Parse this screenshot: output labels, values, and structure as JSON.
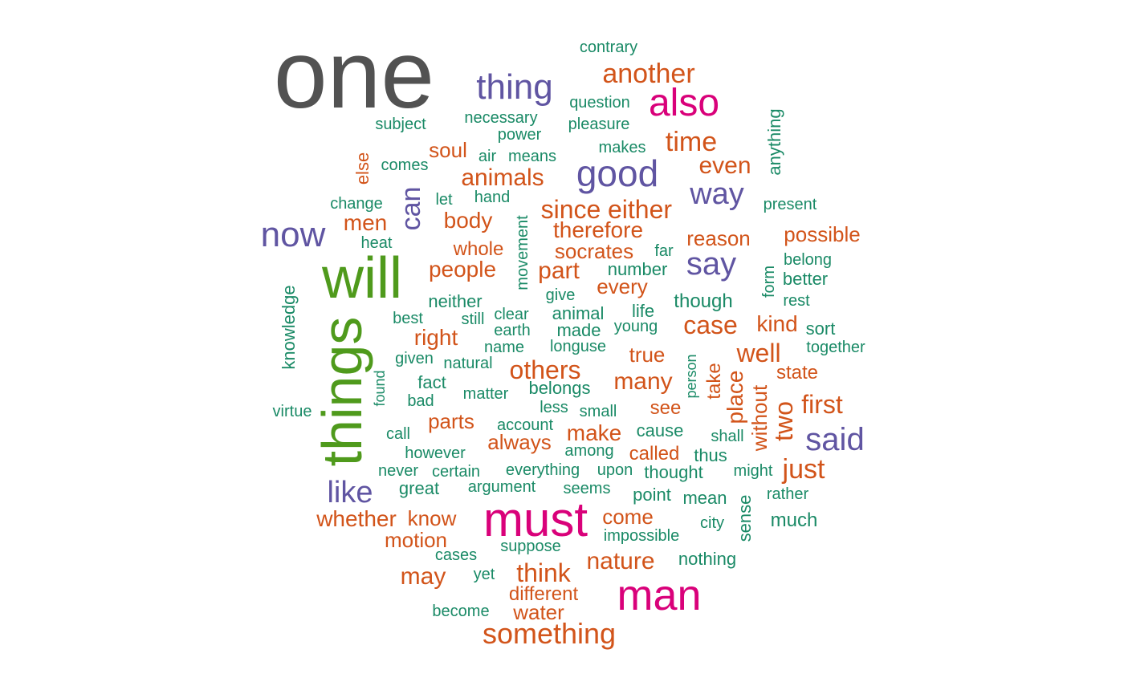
{
  "palette": {
    "gray": "#525252",
    "green": "#4f9a1c",
    "magenta": "#d9017a",
    "purple": "#6055a2",
    "orange": "#d2541a",
    "teal": "#1a8a66"
  },
  "words": [
    {
      "text": "one",
      "c": "gray"
    },
    {
      "text": "things",
      "c": "green",
      "r": -90
    },
    {
      "text": "will",
      "c": "green"
    },
    {
      "text": "must",
      "c": "magenta"
    },
    {
      "text": "man",
      "c": "magenta"
    },
    {
      "text": "also",
      "c": "magenta"
    },
    {
      "text": "good",
      "c": "purple"
    },
    {
      "text": "thing",
      "c": "purple"
    },
    {
      "text": "now",
      "c": "purple"
    },
    {
      "text": "say",
      "c": "purple"
    },
    {
      "text": "way",
      "c": "purple"
    },
    {
      "text": "said",
      "c": "purple"
    },
    {
      "text": "like",
      "c": "purple"
    },
    {
      "text": "can",
      "c": "purple",
      "r": -90
    },
    {
      "text": "another",
      "c": "orange"
    },
    {
      "text": "time",
      "c": "orange"
    },
    {
      "text": "even",
      "c": "orange"
    },
    {
      "text": "animals",
      "c": "orange"
    },
    {
      "text": "soul",
      "c": "orange"
    },
    {
      "text": "men",
      "c": "orange"
    },
    {
      "text": "body",
      "c": "orange"
    },
    {
      "text": "since",
      "c": "orange"
    },
    {
      "text": "either",
      "c": "orange"
    },
    {
      "text": "therefore",
      "c": "orange"
    },
    {
      "text": "reason",
      "c": "orange"
    },
    {
      "text": "possible",
      "c": "orange"
    },
    {
      "text": "whole",
      "c": "orange"
    },
    {
      "text": "socrates",
      "c": "orange"
    },
    {
      "text": "people",
      "c": "orange"
    },
    {
      "text": "part",
      "c": "orange"
    },
    {
      "text": "every",
      "c": "orange"
    },
    {
      "text": "case",
      "c": "orange"
    },
    {
      "text": "kind",
      "c": "orange"
    },
    {
      "text": "right",
      "c": "orange"
    },
    {
      "text": "true",
      "c": "orange"
    },
    {
      "text": "well",
      "c": "orange"
    },
    {
      "text": "others",
      "c": "orange"
    },
    {
      "text": "many",
      "c": "orange"
    },
    {
      "text": "state",
      "c": "orange"
    },
    {
      "text": "first",
      "c": "orange"
    },
    {
      "text": "see",
      "c": "orange"
    },
    {
      "text": "parts",
      "c": "orange"
    },
    {
      "text": "always",
      "c": "orange"
    },
    {
      "text": "make",
      "c": "orange"
    },
    {
      "text": "called",
      "c": "orange"
    },
    {
      "text": "just",
      "c": "orange"
    },
    {
      "text": "whether",
      "c": "orange"
    },
    {
      "text": "know",
      "c": "orange"
    },
    {
      "text": "come",
      "c": "orange"
    },
    {
      "text": "motion",
      "c": "orange"
    },
    {
      "text": "nature",
      "c": "orange"
    },
    {
      "text": "may",
      "c": "orange"
    },
    {
      "text": "think",
      "c": "orange"
    },
    {
      "text": "different",
      "c": "orange"
    },
    {
      "text": "water",
      "c": "orange"
    },
    {
      "text": "something",
      "c": "orange"
    },
    {
      "text": "two",
      "c": "orange",
      "r": -90
    },
    {
      "text": "place",
      "c": "orange",
      "r": -90
    },
    {
      "text": "take",
      "c": "orange",
      "r": -90
    },
    {
      "text": "without",
      "c": "orange",
      "r": -90
    },
    {
      "text": "else",
      "c": "orange",
      "r": -90
    },
    {
      "text": "contrary",
      "c": "teal"
    },
    {
      "text": "question",
      "c": "teal"
    },
    {
      "text": "subject",
      "c": "teal"
    },
    {
      "text": "necessary",
      "c": "teal"
    },
    {
      "text": "power",
      "c": "teal"
    },
    {
      "text": "pleasure",
      "c": "teal"
    },
    {
      "text": "makes",
      "c": "teal"
    },
    {
      "text": "air",
      "c": "teal"
    },
    {
      "text": "means",
      "c": "teal"
    },
    {
      "text": "comes",
      "c": "teal"
    },
    {
      "text": "change",
      "c": "teal"
    },
    {
      "text": "let",
      "c": "teal"
    },
    {
      "text": "hand",
      "c": "teal"
    },
    {
      "text": "present",
      "c": "teal"
    },
    {
      "text": "heat",
      "c": "teal"
    },
    {
      "text": "far",
      "c": "teal"
    },
    {
      "text": "number",
      "c": "teal"
    },
    {
      "text": "belong",
      "c": "teal"
    },
    {
      "text": "better",
      "c": "teal"
    },
    {
      "text": "rest",
      "c": "teal"
    },
    {
      "text": "give",
      "c": "teal"
    },
    {
      "text": "neither",
      "c": "teal"
    },
    {
      "text": "though",
      "c": "teal"
    },
    {
      "text": "best",
      "c": "teal"
    },
    {
      "text": "still",
      "c": "teal"
    },
    {
      "text": "clear",
      "c": "teal"
    },
    {
      "text": "animal",
      "c": "teal"
    },
    {
      "text": "life",
      "c": "teal"
    },
    {
      "text": "earth",
      "c": "teal"
    },
    {
      "text": "made",
      "c": "teal"
    },
    {
      "text": "young",
      "c": "teal"
    },
    {
      "text": "sort",
      "c": "teal"
    },
    {
      "text": "together",
      "c": "teal"
    },
    {
      "text": "name",
      "c": "teal"
    },
    {
      "text": "longuse",
      "c": "teal"
    },
    {
      "text": "given",
      "c": "teal"
    },
    {
      "text": "natural",
      "c": "teal"
    },
    {
      "text": "fact",
      "c": "teal"
    },
    {
      "text": "matter",
      "c": "teal"
    },
    {
      "text": "belongs",
      "c": "teal"
    },
    {
      "text": "bad",
      "c": "teal"
    },
    {
      "text": "less",
      "c": "teal"
    },
    {
      "text": "virtue",
      "c": "teal"
    },
    {
      "text": "small",
      "c": "teal"
    },
    {
      "text": "account",
      "c": "teal"
    },
    {
      "text": "cause",
      "c": "teal"
    },
    {
      "text": "call",
      "c": "teal"
    },
    {
      "text": "shall",
      "c": "teal"
    },
    {
      "text": "however",
      "c": "teal"
    },
    {
      "text": "among",
      "c": "teal"
    },
    {
      "text": "thus",
      "c": "teal"
    },
    {
      "text": "never",
      "c": "teal"
    },
    {
      "text": "certain",
      "c": "teal"
    },
    {
      "text": "everything",
      "c": "teal"
    },
    {
      "text": "upon",
      "c": "teal"
    },
    {
      "text": "thought",
      "c": "teal"
    },
    {
      "text": "might",
      "c": "teal"
    },
    {
      "text": "great",
      "c": "teal"
    },
    {
      "text": "argument",
      "c": "teal"
    },
    {
      "text": "seems",
      "c": "teal"
    },
    {
      "text": "point",
      "c": "teal"
    },
    {
      "text": "mean",
      "c": "teal"
    },
    {
      "text": "rather",
      "c": "teal"
    },
    {
      "text": "city",
      "c": "teal"
    },
    {
      "text": "much",
      "c": "teal"
    },
    {
      "text": "impossible",
      "c": "teal"
    },
    {
      "text": "suppose",
      "c": "teal"
    },
    {
      "text": "cases",
      "c": "teal"
    },
    {
      "text": "nothing",
      "c": "teal"
    },
    {
      "text": "yet",
      "c": "teal"
    },
    {
      "text": "become",
      "c": "teal"
    },
    {
      "text": "anything",
      "c": "teal",
      "r": -90
    },
    {
      "text": "movement",
      "c": "teal",
      "r": -90
    },
    {
      "text": "knowledge",
      "c": "teal",
      "r": -90
    },
    {
      "text": "form",
      "c": "teal",
      "r": -90
    },
    {
      "text": "found",
      "c": "teal",
      "r": -90
    },
    {
      "text": "person",
      "c": "teal",
      "r": -90
    },
    {
      "text": "sense",
      "c": "teal",
      "r": -90
    }
  ]
}
